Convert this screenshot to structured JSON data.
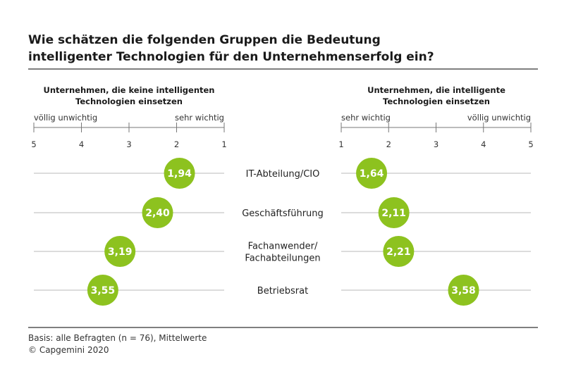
{
  "title_lines": [
    "Wie schätzen die folgenden Gruppen die Bedeutung",
    "intelligenter Technologien für den Unternehmenserfolg ein?"
  ],
  "accent_color": "#8dc21f",
  "footer": {
    "basis": "Basis: alle Befragten (n = 76), Mittelwerte",
    "copyright": "© Capgemini 2020"
  },
  "chart_data": [
    {
      "type": "scatter",
      "panel": "left",
      "title_lines": [
        "Unternehmen, die keine intelligenten",
        "Technologien einsetzen"
      ],
      "axis_left_label": "völlig unwichtig",
      "axis_right_label": "sehr wichtig",
      "tick_labels": [
        "5",
        "4",
        "3",
        "2",
        "1"
      ],
      "xlim": [
        5,
        1
      ],
      "categories": [
        "IT-Abteilung/CIO",
        "Geschäftsführung",
        "Fachanwender/ Fachabteilungen",
        "Betriebsrat"
      ],
      "values": [
        1.94,
        2.4,
        3.19,
        3.55
      ],
      "value_labels": [
        "1,94",
        "2,40",
        "3,19",
        "3,55"
      ]
    },
    {
      "type": "scatter",
      "panel": "right",
      "title_lines": [
        "Unternehmen, die intelligente",
        "Technologien einsetzen"
      ],
      "axis_left_label": "sehr wichtig",
      "axis_right_label": "völlig unwichtig",
      "tick_labels": [
        "1",
        "2",
        "3",
        "4",
        "5"
      ],
      "xlim": [
        1,
        5
      ],
      "categories": [
        "IT-Abteilung/CIO",
        "Geschäftsführung",
        "Fachanwender/ Fachabteilungen",
        "Betriebsrat"
      ],
      "values": [
        1.64,
        2.11,
        2.21,
        3.58
      ],
      "value_labels": [
        "1,64",
        "2,11",
        "2,21",
        "3,58"
      ]
    }
  ],
  "category_labels": [
    [
      "IT-Abteilung/CIO"
    ],
    [
      "Geschäftsführung"
    ],
    [
      "Fachanwender/",
      "Fachabteilungen"
    ],
    [
      "Betriebsrat"
    ]
  ]
}
